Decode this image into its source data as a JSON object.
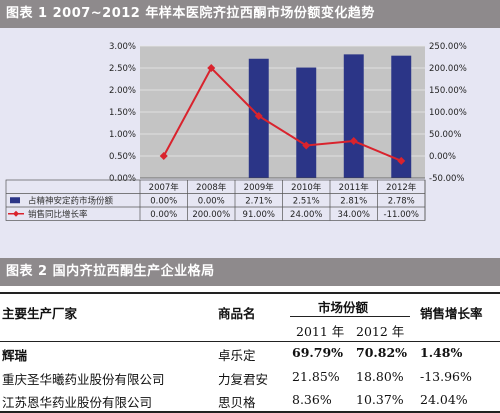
{
  "figure1": {
    "title": "图表 1  2007~2012 年样本医院齐拉西酮市场份额变化趋势",
    "chart_data": {
      "type": "bar+line",
      "categories": [
        "2007年",
        "2008年",
        "2009年",
        "2010年",
        "2011年",
        "2012年"
      ],
      "series": [
        {
          "name": "占精神安定药市场份额",
          "kind": "bar",
          "axis": "left",
          "values": [
            0.0,
            0.0,
            2.71,
            2.51,
            2.81,
            2.78
          ],
          "labels": [
            "0.00%",
            "0.00%",
            "2.71%",
            "2.51%",
            "2.81%",
            "2.78%"
          ],
          "color": "#2b3587"
        },
        {
          "name": "销售同比增长率",
          "kind": "line",
          "axis": "right",
          "values": [
            0.0,
            200.0,
            91.0,
            24.0,
            34.0,
            -11.0
          ],
          "labels": [
            "0.00%",
            "200.00%",
            "91.00%",
            "24.00%",
            "34.00%",
            "-11.00%"
          ],
          "color": "#d9232d"
        }
      ],
      "left_axis": {
        "range": [
          0,
          3.0
        ],
        "ticks": [
          "0.00%",
          "0.50%",
          "1.00%",
          "1.50%",
          "2.00%",
          "2.50%",
          "3.00%"
        ]
      },
      "right_axis": {
        "range": [
          -50,
          250
        ],
        "ticks": [
          "-50.00%",
          "0.00%",
          "50.00%",
          "100.00%",
          "150.00%",
          "200.00%",
          "250.00%"
        ]
      },
      "grid": true,
      "legend": "data table below"
    }
  },
  "figure2": {
    "title": "图表 2  国内齐拉西酮生产企业格局",
    "headers": {
      "manufacturer": "主要生产厂家",
      "product": "商品名",
      "share": "市场份额",
      "growth": "销售增长率"
    },
    "share_years": [
      "2011 年",
      "2012 年"
    ],
    "rows": [
      {
        "manufacturer": "辉瑞",
        "product": "卓乐定",
        "share2011": "69.79%",
        "share2012": "70.82%",
        "growth": "1.48%"
      },
      {
        "manufacturer": "重庆圣华曦药业股份有限公司",
        "product": "力复君安",
        "share2011": "21.85%",
        "share2012": "18.80%",
        "growth": "-13.96%"
      },
      {
        "manufacturer": "江苏恩华药业股份有限公司",
        "product": "思贝格",
        "share2011": "8.36%",
        "share2012": "10.37%",
        "growth": "24.04%"
      }
    ]
  }
}
